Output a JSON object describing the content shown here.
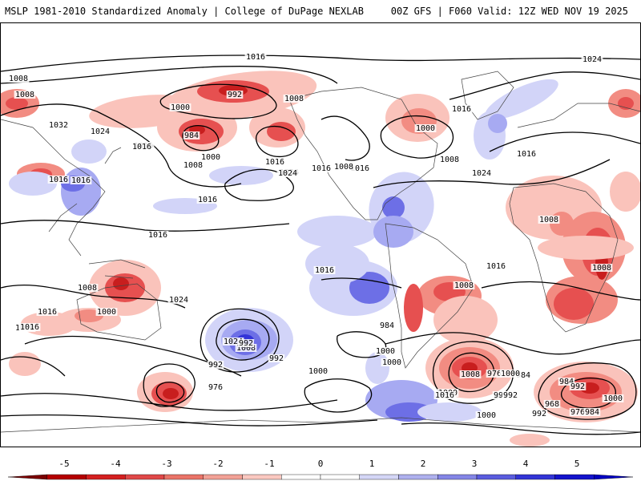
{
  "header": {
    "left_title": "MSLP 1981-2010 Standardized Anomaly | College of DuPage NEXLAB",
    "right_title": "00Z GFS | F060 Valid: 12Z WED NOV 19 2025"
  },
  "map": {
    "contour_labels": [
      "1016",
      "1024",
      "1008",
      "1008",
      "992",
      "1008",
      "1000",
      "984",
      "1000",
      "1016",
      "1032",
      "1024",
      "1016",
      "1008",
      "1016",
      "1024",
      "1016",
      "1016",
      "1008",
      "1000",
      "1016",
      "1024",
      "1016",
      "1016",
      "1016",
      "1008",
      "1024",
      "1016",
      "1008",
      "1008",
      "1008",
      "1016",
      "1016",
      "1016",
      "1008",
      "1000",
      "1016",
      "1000",
      "1024",
      "1016",
      "1024",
      "1008",
      "992",
      "1000",
      "984",
      "1000",
      "976",
      "992",
      "1000",
      "992",
      "1000",
      "976",
      "984",
      "992",
      "1000",
      "1008",
      "1016",
      "984",
      "1000",
      "992",
      "968",
      "976",
      "984",
      "992",
      "1000",
      "992"
    ],
    "colors": {
      "neg5": "#8b0000",
      "neg4": "#c81e1e",
      "neg3": "#e65050",
      "neg2": "#f28c82",
      "neg1": "#fac3bb",
      "pos1": "#d2d4f8",
      "pos2": "#a7aaf2",
      "pos3": "#6d6fe6",
      "pos4": "#3434d8",
      "pos5": "#0000c8"
    }
  },
  "colorbar": {
    "labels": [
      "-5",
      "-4",
      "-3",
      "-2",
      "-1",
      "0",
      "1",
      "2",
      "3",
      "4",
      "5"
    ],
    "colors": [
      "#7a0000",
      "#b40000",
      "#d42020",
      "#e04848",
      "#ea7468",
      "#f2a196",
      "#fac8c0",
      "#ffffff",
      "#ffffff",
      "#d4d6f6",
      "#aeb0ee",
      "#8486e6",
      "#5a5cde",
      "#3234d6",
      "#1414cc",
      "#0000c0"
    ]
  }
}
